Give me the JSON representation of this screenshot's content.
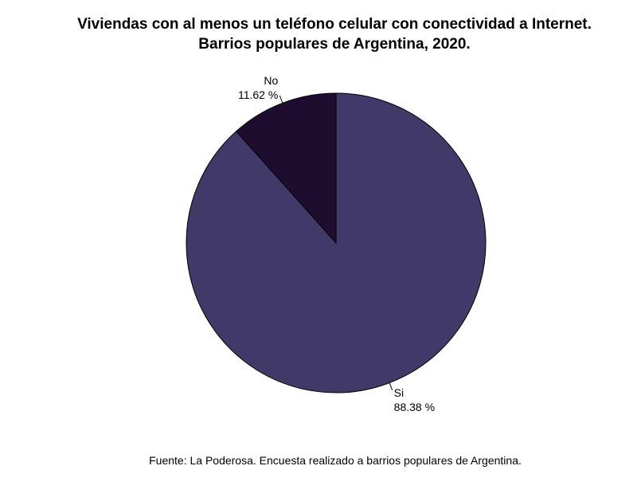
{
  "chart_data": {
    "type": "pie",
    "title": "Viviendas con al menos un teléfono celular con conectividad a Internet.",
    "subtitle": "Barrios populares de Argentina, 2020.",
    "caption": "Fuente: La Poderosa. Encuesta realizado a barrios populares de Argentina.",
    "slices": [
      {
        "label": "No",
        "value": 11.62,
        "display": "11.62 %",
        "color": "#1e0d2f"
      },
      {
        "label": "Si",
        "value": 88.38,
        "display": "88.38 %",
        "color": "#413a69"
      }
    ],
    "legend": "none"
  }
}
